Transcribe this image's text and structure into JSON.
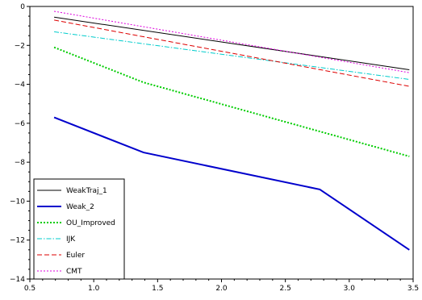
{
  "chart_data": {
    "type": "line",
    "title": "",
    "xlabel": "",
    "ylabel": "",
    "xlim": [
      0.5,
      3.5
    ],
    "ylim": [
      -14,
      0
    ],
    "xticks": [
      "0.5",
      "1.0",
      "1.5",
      "2.0",
      "2.5",
      "3.0",
      "3.5"
    ],
    "yticks": [
      "0",
      "−2",
      "−4",
      "−6",
      "−8",
      "−10",
      "−12",
      "−14"
    ],
    "xtick_values": [
      0.5,
      1.0,
      1.5,
      2.0,
      2.5,
      3.0,
      3.5
    ],
    "ytick_values": [
      0,
      -2,
      -4,
      -6,
      -8,
      -10,
      -12,
      -14
    ],
    "grid": false,
    "legend_position": "bottom-left",
    "series": [
      {
        "name": "WeakTraj_1",
        "color": "#000000",
        "dash": "solid",
        "width": 1,
        "x": [
          0.69,
          3.47
        ],
        "y": [
          -0.55,
          -3.25
        ]
      },
      {
        "name": "Weak_2",
        "color": "#0000cc",
        "dash": "solid",
        "width": 2,
        "x": [
          0.69,
          1.39,
          2.77,
          3.47
        ],
        "y": [
          -5.7,
          -7.5,
          -9.4,
          -12.5
        ]
      },
      {
        "name": "OU_Improved",
        "color": "#00cc00",
        "dash": "dotted",
        "width": 2,
        "x": [
          0.69,
          1.39,
          3.47
        ],
        "y": [
          -2.1,
          -3.9,
          -7.7
        ]
      },
      {
        "name": "IJK",
        "color": "#00cccc",
        "dash": "dashdot",
        "width": 1,
        "x": [
          0.69,
          3.47
        ],
        "y": [
          -1.3,
          -3.75
        ]
      },
      {
        "name": "Euler",
        "color": "#dd0000",
        "dash": "dashed",
        "width": 1,
        "x": [
          0.69,
          3.47
        ],
        "y": [
          -0.7,
          -4.1
        ]
      },
      {
        "name": "CMT",
        "color": "#dd00dd",
        "dash": "dotted",
        "width": 1,
        "x": [
          0.69,
          3.47
        ],
        "y": [
          -0.25,
          -3.4
        ]
      }
    ]
  }
}
